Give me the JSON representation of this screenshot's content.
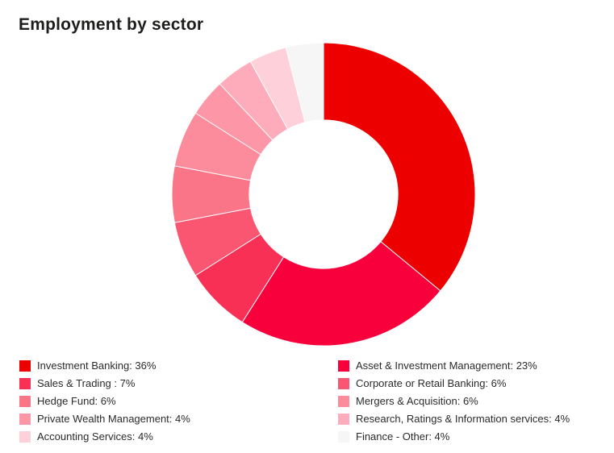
{
  "title": "Employment by sector",
  "colors": {
    "background": "#ffffff",
    "title_text": "#1d1d1b",
    "legend_text": "#2b2b2b",
    "slice_border": "#ffffff"
  },
  "chart_data": {
    "type": "pie",
    "subtype": "donut",
    "title": "Employment by sector",
    "unit": "%",
    "start_angle_deg": 0,
    "direction": "clockwise",
    "inner_radius_ratio": 0.49,
    "legend_position": "bottom",
    "legend_columns": 2,
    "series": [
      {
        "label": "Investment Banking",
        "value": 36,
        "color": "#ED0000"
      },
      {
        "label": "Asset & Investment Management",
        "value": 23,
        "color": "#F8003C"
      },
      {
        "label": "Sales & Trading ",
        "value": 7,
        "color": "#F93056"
      },
      {
        "label": "Corporate or Retail Banking",
        "value": 6,
        "color": "#FA5571"
      },
      {
        "label": "Hedge Fund",
        "value": 6,
        "color": "#FB7589"
      },
      {
        "label": "Mergers & Acquisition",
        "value": 6,
        "color": "#FC8B9C"
      },
      {
        "label": "Private Wealth Management",
        "value": 4,
        "color": "#FD97A7"
      },
      {
        "label": "Research, Ratings & Information services",
        "value": 4,
        "color": "#FEACBB"
      },
      {
        "label": "Accounting Services",
        "value": 4,
        "color": "#FED0DA"
      },
      {
        "label": "Finance - Other",
        "value": 4,
        "color": "#F7F6F6"
      }
    ]
  }
}
